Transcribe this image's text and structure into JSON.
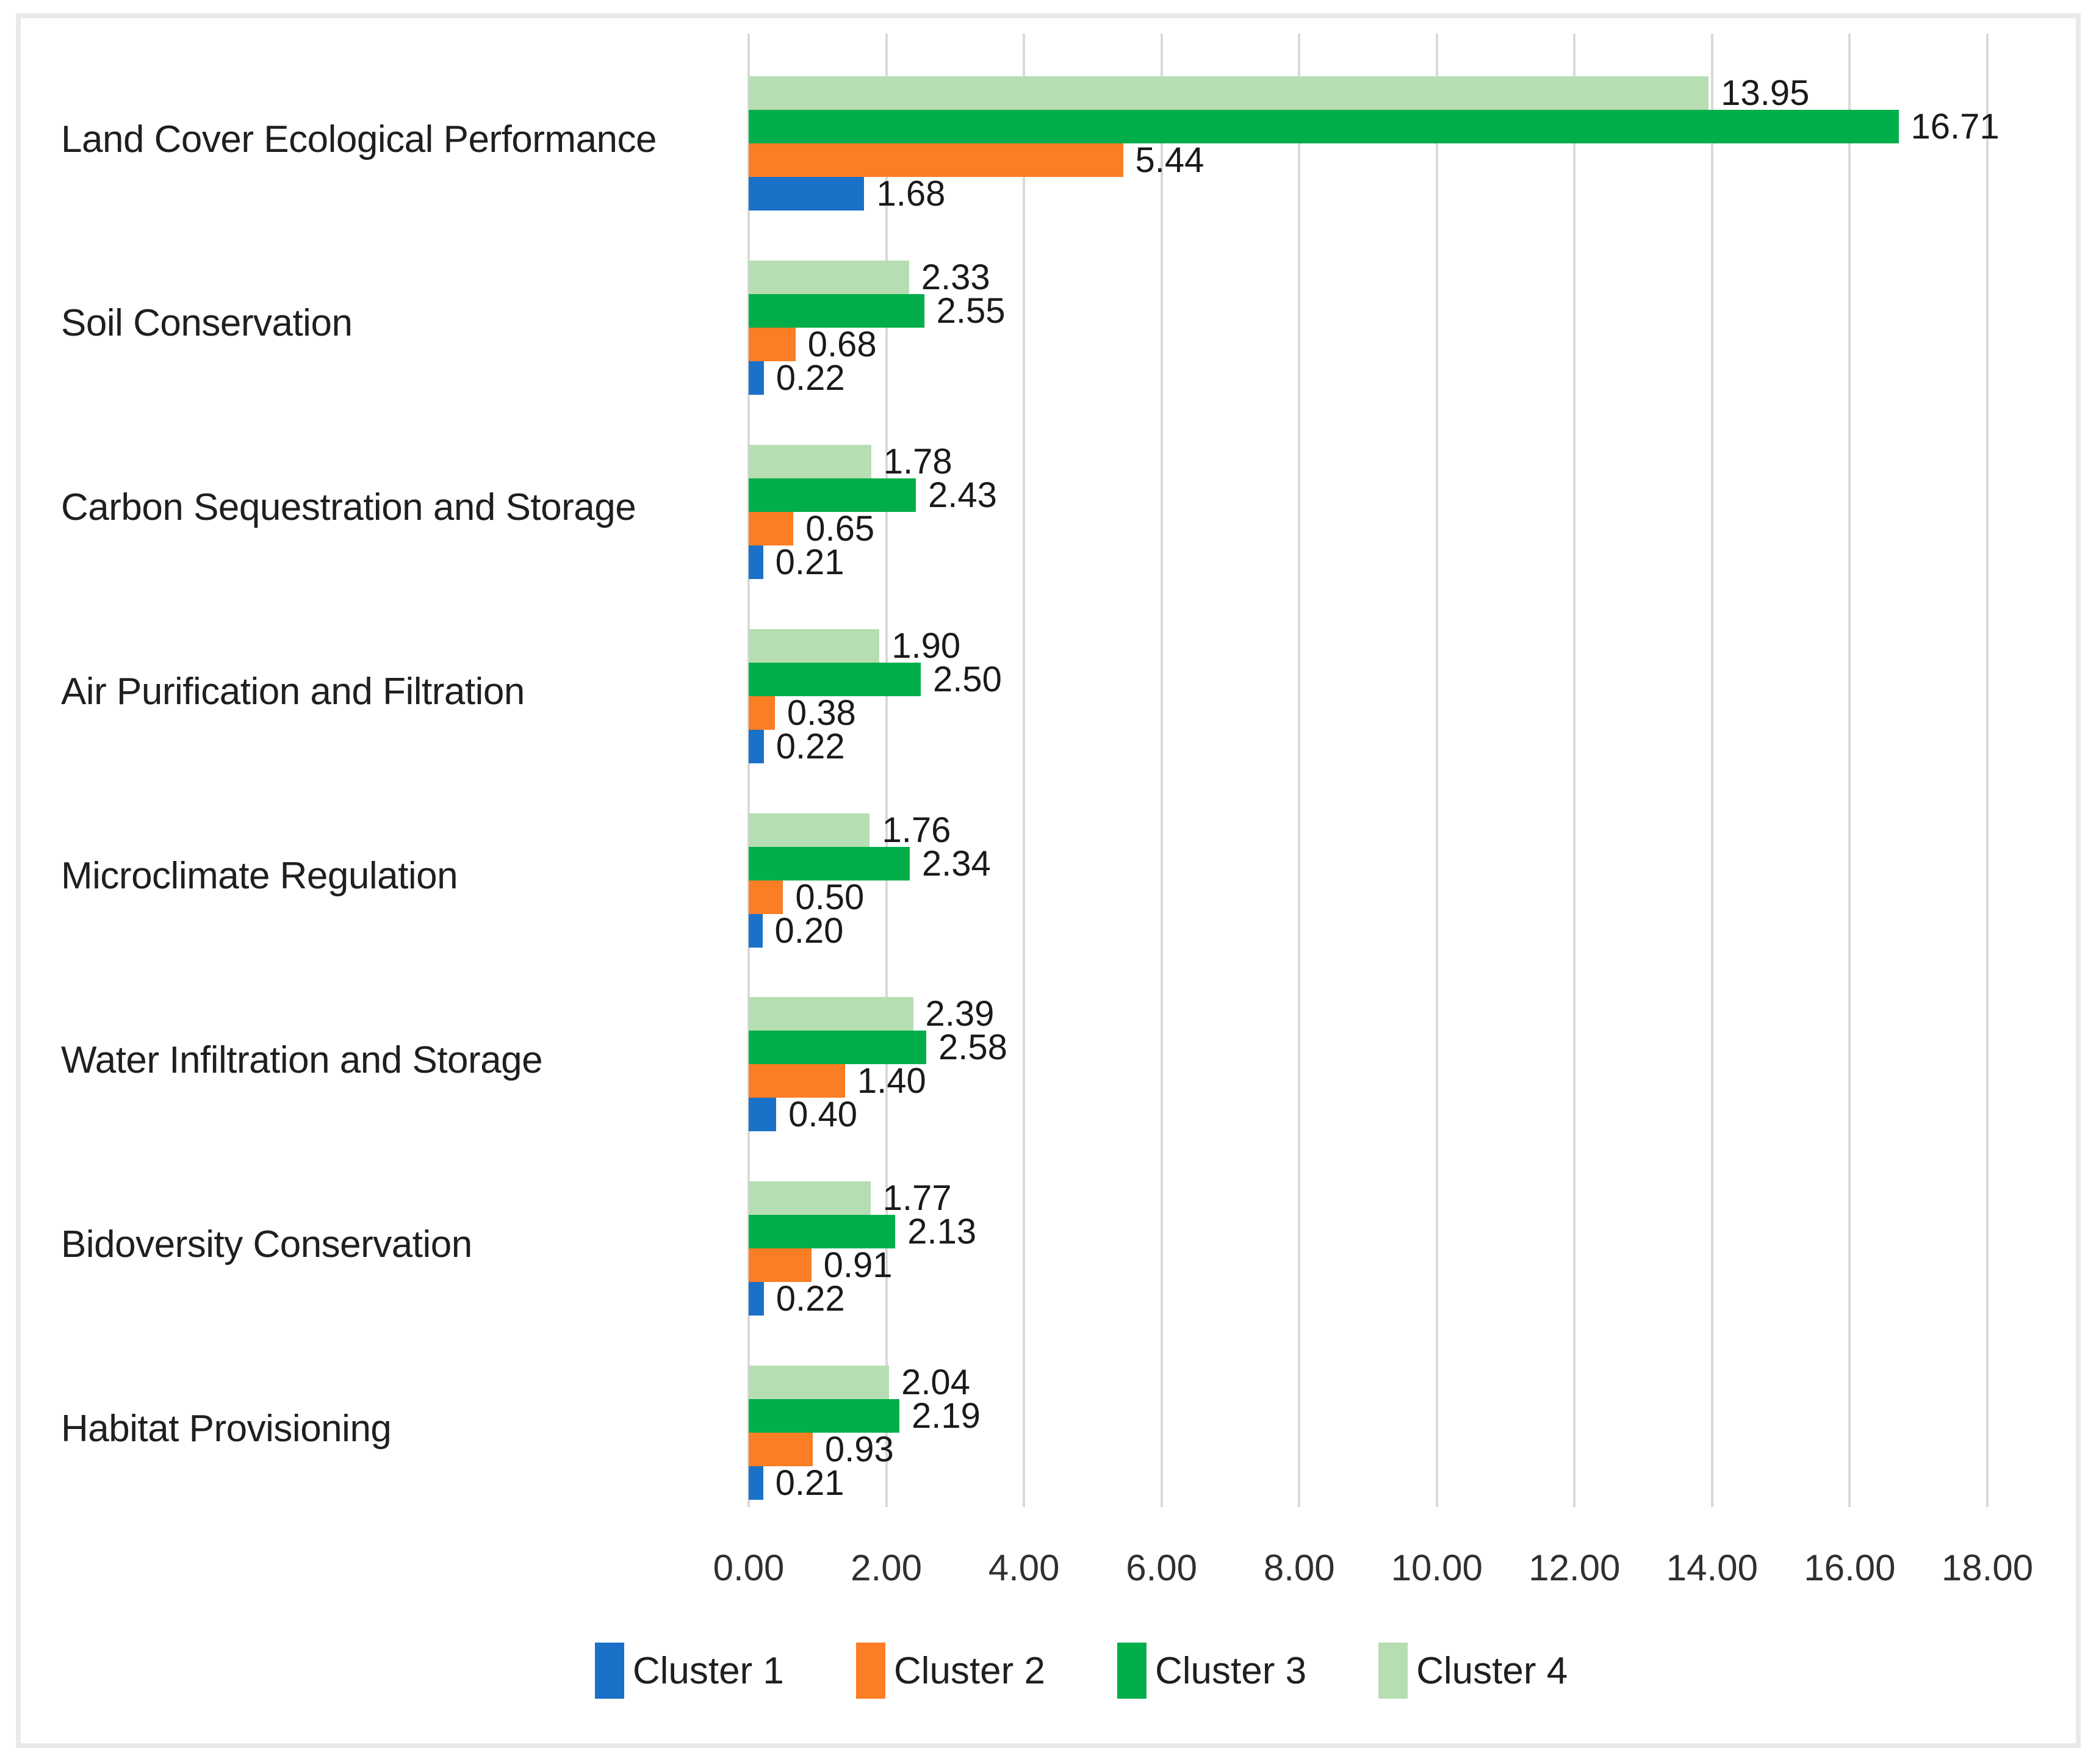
{
  "chart_data": {
    "type": "bar",
    "orientation": "horizontal",
    "title": "",
    "xlabel": "",
    "ylabel": "",
    "categories": [
      "Land Cover Ecological Performance",
      "Soil Conservation",
      "Carbon Sequestration and Storage",
      "Air Purification and Filtration",
      "Microclimate Regulation",
      "Water Infiltration and Storage",
      "Bidoversity Conservation",
      "Habitat Provisioning"
    ],
    "series": [
      {
        "name": "Cluster 1",
        "color": "#1b71c8",
        "values": [
          1.68,
          0.22,
          0.21,
          0.22,
          0.2,
          0.4,
          0.22,
          0.21
        ]
      },
      {
        "name": "Cluster 2",
        "color": "#fb7d24",
        "values": [
          5.44,
          0.68,
          0.65,
          0.38,
          0.5,
          1.4,
          0.91,
          0.93
        ]
      },
      {
        "name": "Cluster 3",
        "color": "#01ae4a",
        "values": [
          16.71,
          2.55,
          2.43,
          2.5,
          2.34,
          2.58,
          2.13,
          2.19
        ]
      },
      {
        "name": "Cluster 4",
        "color": "#b6deb2",
        "values": [
          13.95,
          2.33,
          1.78,
          1.9,
          1.76,
          2.39,
          1.77,
          2.04
        ]
      }
    ],
    "bar_order_top_to_bottom": [
      "Cluster 4",
      "Cluster 3",
      "Cluster 2",
      "Cluster 1"
    ],
    "data_labels": true,
    "data_label_decimals": 2,
    "xlim": [
      0,
      18
    ],
    "x_ticks": [
      "0.00",
      "2.00",
      "4.00",
      "6.00",
      "8.00",
      "10.00",
      "12.00",
      "14.00",
      "16.00",
      "18.00"
    ],
    "grid": "vertical",
    "gridline_color": "#d9d9d9",
    "frame_color": "#e9e9e9",
    "background_color": "#ffffff",
    "text_color": "#1f1f1f",
    "legend_position": "bottom",
    "legend_labels": [
      "Cluster 1",
      "Cluster 2",
      "Cluster 3",
      "Cluster 4"
    ]
  }
}
